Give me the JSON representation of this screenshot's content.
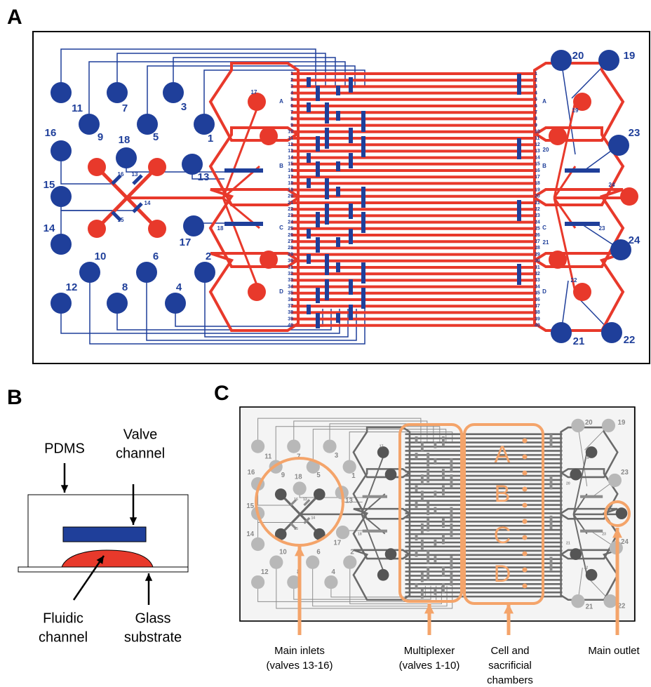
{
  "panel_labels": [
    "A",
    "B",
    "C"
  ],
  "panel_a": {
    "ports": [
      "11",
      "7",
      "3",
      "9",
      "5",
      "1",
      "16",
      "18",
      "13",
      "15",
      "14",
      "17",
      "10",
      "6",
      "2",
      "12",
      "8",
      "4",
      "20",
      "19",
      "23",
      "24",
      "21",
      "22"
    ],
    "valve_labels": [
      "17",
      "16",
      "13",
      "15",
      "14",
      "18",
      "19",
      "20",
      "24",
      "23",
      "21",
      "22"
    ],
    "chamber_letters": [
      "A",
      "B",
      "C",
      "D"
    ],
    "channel_numbers": [
      1,
      2,
      3,
      4,
      5,
      6,
      7,
      8,
      9,
      10,
      11,
      12,
      13,
      14,
      15,
      16,
      17,
      18,
      19,
      20,
      21,
      22,
      23,
      24,
      25,
      26,
      27,
      28,
      29,
      30,
      31,
      32,
      33,
      34,
      35,
      36,
      37,
      38,
      39,
      40
    ]
  },
  "panel_b": {
    "pdms": "PDMS",
    "valve_channel": [
      "Valve",
      "channel"
    ],
    "fluidic_channel": [
      "Fluidic",
      "channel"
    ],
    "glass_substrate": [
      "Glass",
      "substrate"
    ]
  },
  "panel_c": {
    "ports": [
      "11",
      "7",
      "3",
      "9",
      "5",
      "1",
      "16",
      "18",
      "13",
      "15",
      "14",
      "17",
      "10",
      "6",
      "2",
      "12",
      "8",
      "4",
      "20",
      "19",
      "23",
      "24",
      "21",
      "22"
    ],
    "valve_labels": [
      "17",
      "16",
      "13",
      "15",
      "14",
      "18",
      "19",
      "20",
      "24",
      "23",
      "21",
      "22"
    ],
    "chamber_letters": [
      "A",
      "B",
      "C",
      "D"
    ],
    "annotations": [
      [
        "Main inlets",
        "(valves 13-16)"
      ],
      [
        "Multiplexer",
        "(valves 1-10)"
      ],
      [
        "Cell and",
        "sacrificial",
        "chambers"
      ],
      [
        "Main outlet"
      ]
    ]
  }
}
